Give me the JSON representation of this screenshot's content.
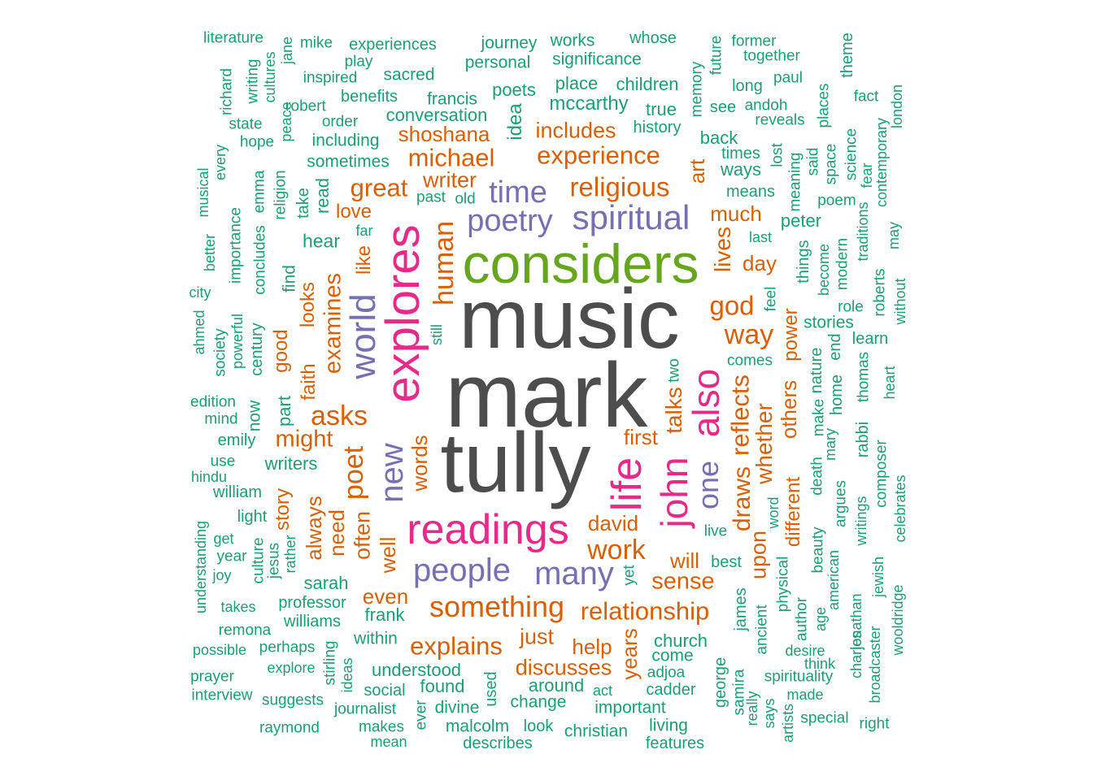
{
  "palette": {
    "c1": "#4d4d4d",
    "c2": "#e7298a",
    "c3": "#66a61e",
    "c4": "#7570b3",
    "c5": "#d95f02",
    "c6": "#1b9e77"
  },
  "words": [
    {
      "text": "music",
      "color": "c1"
    },
    {
      "text": "mark",
      "color": "c1"
    },
    {
      "text": "tully",
      "color": "c1"
    },
    {
      "text": "considers",
      "color": "c3"
    },
    {
      "text": "explores",
      "color": "c2"
    },
    {
      "text": "readings",
      "color": "c2"
    },
    {
      "text": "life",
      "color": "c2"
    },
    {
      "text": "also",
      "color": "c2"
    },
    {
      "text": "john",
      "color": "c2"
    },
    {
      "text": "spiritual",
      "color": "c4"
    },
    {
      "text": "poetry",
      "color": "c4"
    },
    {
      "text": "time",
      "color": "c4"
    },
    {
      "text": "world",
      "color": "c4"
    },
    {
      "text": "new",
      "color": "c4"
    },
    {
      "text": "people",
      "color": "c4"
    },
    {
      "text": "many",
      "color": "c4"
    },
    {
      "text": "one",
      "color": "c4"
    },
    {
      "text": "something",
      "color": "c5"
    },
    {
      "text": "relationship",
      "color": "c5"
    },
    {
      "text": "experience",
      "color": "c5"
    },
    {
      "text": "religious",
      "color": "c5"
    },
    {
      "text": "michael",
      "color": "c5"
    },
    {
      "text": "shoshana",
      "color": "c5"
    },
    {
      "text": "includes",
      "color": "c5"
    },
    {
      "text": "writer",
      "color": "c5"
    },
    {
      "text": "great",
      "color": "c5"
    },
    {
      "text": "human",
      "color": "c5"
    },
    {
      "text": "asks",
      "color": "c5"
    },
    {
      "text": "poet",
      "color": "c5"
    },
    {
      "text": "examines",
      "color": "c5"
    },
    {
      "text": "work",
      "color": "c5"
    },
    {
      "text": "god",
      "color": "c5"
    },
    {
      "text": "way",
      "color": "c5"
    },
    {
      "text": "reflects",
      "color": "c5"
    },
    {
      "text": "whether",
      "color": "c5"
    },
    {
      "text": "talks",
      "color": "c5"
    },
    {
      "text": "explains",
      "color": "c5"
    },
    {
      "text": "discusses",
      "color": "c5"
    },
    {
      "text": "sense",
      "color": "c5"
    },
    {
      "text": "might",
      "color": "c5"
    },
    {
      "text": "draws",
      "color": "c5"
    },
    {
      "text": "others",
      "color": "c5"
    },
    {
      "text": "lives",
      "color": "c5"
    },
    {
      "text": "day",
      "color": "c5"
    },
    {
      "text": "much",
      "color": "c5"
    },
    {
      "text": "art",
      "color": "c5"
    },
    {
      "text": "help",
      "color": "c5"
    },
    {
      "text": "just",
      "color": "c5"
    },
    {
      "text": "even",
      "color": "c5"
    },
    {
      "text": "years",
      "color": "c5"
    },
    {
      "text": "first",
      "color": "c5"
    },
    {
      "text": "will",
      "color": "c5"
    },
    {
      "text": "david",
      "color": "c5"
    },
    {
      "text": "upon",
      "color": "c5"
    },
    {
      "text": "often",
      "color": "c5"
    },
    {
      "text": "always",
      "color": "c5"
    },
    {
      "text": "need",
      "color": "c5"
    },
    {
      "text": "words",
      "color": "c5"
    },
    {
      "text": "well",
      "color": "c5"
    },
    {
      "text": "good",
      "color": "c5"
    },
    {
      "text": "faith",
      "color": "c5"
    },
    {
      "text": "looks",
      "color": "c5"
    },
    {
      "text": "power",
      "color": "c5"
    },
    {
      "text": "different",
      "color": "c5"
    },
    {
      "text": "love",
      "color": "c5"
    },
    {
      "text": "like",
      "color": "c5"
    },
    {
      "text": "story",
      "color": "c5"
    },
    {
      "text": "literature",
      "color": "c6"
    },
    {
      "text": "jane",
      "color": "c6"
    },
    {
      "text": "mike",
      "color": "c6"
    },
    {
      "text": "experiences",
      "color": "c6"
    },
    {
      "text": "journey",
      "color": "c6"
    },
    {
      "text": "works",
      "color": "c6"
    },
    {
      "text": "whose",
      "color": "c6"
    },
    {
      "text": "future",
      "color": "c6"
    },
    {
      "text": "former",
      "color": "c6"
    },
    {
      "text": "theme",
      "color": "c6"
    },
    {
      "text": "play",
      "color": "c6"
    },
    {
      "text": "personal",
      "color": "c6"
    },
    {
      "text": "significance",
      "color": "c6"
    },
    {
      "text": "together",
      "color": "c6"
    },
    {
      "text": "writing",
      "color": "c6"
    },
    {
      "text": "cultures",
      "color": "c6"
    },
    {
      "text": "inspired",
      "color": "c6"
    },
    {
      "text": "sacred",
      "color": "c6"
    },
    {
      "text": "memory",
      "color": "c6"
    },
    {
      "text": "paul",
      "color": "c6"
    },
    {
      "text": "richard",
      "color": "c6"
    },
    {
      "text": "poets",
      "color": "c6"
    },
    {
      "text": "place",
      "color": "c6"
    },
    {
      "text": "children",
      "color": "c6"
    },
    {
      "text": "long",
      "color": "c6"
    },
    {
      "text": "benefits",
      "color": "c6"
    },
    {
      "text": "francis",
      "color": "c6"
    },
    {
      "text": "idea",
      "color": "c6"
    },
    {
      "text": "mccarthy",
      "color": "c6"
    },
    {
      "text": "fact",
      "color": "c6"
    },
    {
      "text": "robert",
      "color": "c6"
    },
    {
      "text": "true",
      "color": "c6"
    },
    {
      "text": "see",
      "color": "c6"
    },
    {
      "text": "andoh",
      "color": "c6"
    },
    {
      "text": "places",
      "color": "c6"
    },
    {
      "text": "london",
      "color": "c6"
    },
    {
      "text": "state",
      "color": "c6"
    },
    {
      "text": "peace",
      "color": "c6"
    },
    {
      "text": "order",
      "color": "c6"
    },
    {
      "text": "conversation",
      "color": "c6"
    },
    {
      "text": "history",
      "color": "c6"
    },
    {
      "text": "reveals",
      "color": "c6"
    },
    {
      "text": "contemporary",
      "color": "c6"
    },
    {
      "text": "hope",
      "color": "c6"
    },
    {
      "text": "including",
      "color": "c6"
    },
    {
      "text": "back",
      "color": "c6"
    },
    {
      "text": "science",
      "color": "c6"
    },
    {
      "text": "every",
      "color": "c6"
    },
    {
      "text": "sometimes",
      "color": "c6"
    },
    {
      "text": "times",
      "color": "c6"
    },
    {
      "text": "lost",
      "color": "c6"
    },
    {
      "text": "said",
      "color": "c6"
    },
    {
      "text": "space",
      "color": "c6"
    },
    {
      "text": "fear",
      "color": "c6"
    },
    {
      "text": "musical",
      "color": "c6"
    },
    {
      "text": "emma",
      "color": "c6"
    },
    {
      "text": "religion",
      "color": "c6"
    },
    {
      "text": "ways",
      "color": "c6"
    },
    {
      "text": "meaning",
      "color": "c6"
    },
    {
      "text": "take",
      "color": "c6"
    },
    {
      "text": "read",
      "color": "c6"
    },
    {
      "text": "past",
      "color": "c6"
    },
    {
      "text": "old",
      "color": "c6"
    },
    {
      "text": "means",
      "color": "c6"
    },
    {
      "text": "poem",
      "color": "c6"
    },
    {
      "text": "traditions",
      "color": "c6"
    },
    {
      "text": "better",
      "color": "c6"
    },
    {
      "text": "importance",
      "color": "c6"
    },
    {
      "text": "concludes",
      "color": "c6"
    },
    {
      "text": "far",
      "color": "c6"
    },
    {
      "text": "peter",
      "color": "c6"
    },
    {
      "text": "last",
      "color": "c6"
    },
    {
      "text": "may",
      "color": "c6"
    },
    {
      "text": "hear",
      "color": "c6"
    },
    {
      "text": "become",
      "color": "c6"
    },
    {
      "text": "modern",
      "color": "c6"
    },
    {
      "text": "find",
      "color": "c6"
    },
    {
      "text": "things",
      "color": "c6"
    },
    {
      "text": "roberts",
      "color": "c6"
    },
    {
      "text": "city",
      "color": "c6"
    },
    {
      "text": "feel",
      "color": "c6"
    },
    {
      "text": "role",
      "color": "c6"
    },
    {
      "text": "without",
      "color": "c6"
    },
    {
      "text": "ahmed",
      "color": "c6"
    },
    {
      "text": "powerful",
      "color": "c6"
    },
    {
      "text": "century",
      "color": "c6"
    },
    {
      "text": "still",
      "color": "c6"
    },
    {
      "text": "stories",
      "color": "c6"
    },
    {
      "text": "learn",
      "color": "c6"
    },
    {
      "text": "society",
      "color": "c6"
    },
    {
      "text": "comes",
      "color": "c6"
    },
    {
      "text": "nature",
      "color": "c6"
    },
    {
      "text": "end",
      "color": "c6"
    },
    {
      "text": "home",
      "color": "c6"
    },
    {
      "text": "thomas",
      "color": "c6"
    },
    {
      "text": "heart",
      "color": "c6"
    },
    {
      "text": "two",
      "color": "c6"
    },
    {
      "text": "edition",
      "color": "c6"
    },
    {
      "text": "now",
      "color": "c6"
    },
    {
      "text": "part",
      "color": "c6"
    },
    {
      "text": "mind",
      "color": "c6"
    },
    {
      "text": "rabbi",
      "color": "c6"
    },
    {
      "text": "make",
      "color": "c6"
    },
    {
      "text": "emily",
      "color": "c6"
    },
    {
      "text": "mary",
      "color": "c6"
    },
    {
      "text": "composer",
      "color": "c6"
    },
    {
      "text": "use",
      "color": "c6"
    },
    {
      "text": "writers",
      "color": "c6"
    },
    {
      "text": "hindu",
      "color": "c6"
    },
    {
      "text": "death",
      "color": "c6"
    },
    {
      "text": "celebrates",
      "color": "c6"
    },
    {
      "text": "william",
      "color": "c6"
    },
    {
      "text": "word",
      "color": "c6"
    },
    {
      "text": "argues",
      "color": "c6"
    },
    {
      "text": "writings",
      "color": "c6"
    },
    {
      "text": "light",
      "color": "c6"
    },
    {
      "text": "understanding",
      "color": "c6"
    },
    {
      "text": "get",
      "color": "c6"
    },
    {
      "text": "culture",
      "color": "c6"
    },
    {
      "text": "jesus",
      "color": "c6"
    },
    {
      "text": "rather",
      "color": "c6"
    },
    {
      "text": "live",
      "color": "c6"
    },
    {
      "text": "beauty",
      "color": "c6"
    },
    {
      "text": "american",
      "color": "c6"
    },
    {
      "text": "year",
      "color": "c6"
    },
    {
      "text": "best",
      "color": "c6"
    },
    {
      "text": "joy",
      "color": "c6"
    },
    {
      "text": "yet",
      "color": "c6"
    },
    {
      "text": "physical",
      "color": "c6"
    },
    {
      "text": "jewish",
      "color": "c6"
    },
    {
      "text": "sarah",
      "color": "c6"
    },
    {
      "text": "wooldridge",
      "color": "c6"
    },
    {
      "text": "takes",
      "color": "c6"
    },
    {
      "text": "professor",
      "color": "c6"
    },
    {
      "text": "james",
      "color": "c6"
    },
    {
      "text": "age",
      "color": "c6"
    },
    {
      "text": "author",
      "color": "c6"
    },
    {
      "text": "jonathan",
      "color": "c6"
    },
    {
      "text": "frank",
      "color": "c6"
    },
    {
      "text": "remona",
      "color": "c6"
    },
    {
      "text": "williams",
      "color": "c6"
    },
    {
      "text": "ancient",
      "color": "c6"
    },
    {
      "text": "charles",
      "color": "c6"
    },
    {
      "text": "within",
      "color": "c6"
    },
    {
      "text": "church",
      "color": "c6"
    },
    {
      "text": "possible",
      "color": "c6"
    },
    {
      "text": "perhaps",
      "color": "c6"
    },
    {
      "text": "desire",
      "color": "c6"
    },
    {
      "text": "stirling",
      "color": "c6"
    },
    {
      "text": "come",
      "color": "c6"
    },
    {
      "text": "broadcaster",
      "color": "c6"
    },
    {
      "text": "explore",
      "color": "c6"
    },
    {
      "text": "think",
      "color": "c6"
    },
    {
      "text": "understood",
      "color": "c6"
    },
    {
      "text": "adjoa",
      "color": "c6"
    },
    {
      "text": "prayer",
      "color": "c6"
    },
    {
      "text": "ideas",
      "color": "c6"
    },
    {
      "text": "spirituality",
      "color": "c6"
    },
    {
      "text": "used",
      "color": "c6"
    },
    {
      "text": "george",
      "color": "c6"
    },
    {
      "text": "samira",
      "color": "c6"
    },
    {
      "text": "around",
      "color": "c6"
    },
    {
      "text": "social",
      "color": "c6"
    },
    {
      "text": "found",
      "color": "c6"
    },
    {
      "text": "act",
      "color": "c6"
    },
    {
      "text": "cadder",
      "color": "c6"
    },
    {
      "text": "interview",
      "color": "c6"
    },
    {
      "text": "made",
      "color": "c6"
    },
    {
      "text": "suggests",
      "color": "c6"
    },
    {
      "text": "divine",
      "color": "c6"
    },
    {
      "text": "change",
      "color": "c6"
    },
    {
      "text": "important",
      "color": "c6"
    },
    {
      "text": "really",
      "color": "c6"
    },
    {
      "text": "says",
      "color": "c6"
    },
    {
      "text": "journalist",
      "color": "c6"
    },
    {
      "text": "artists",
      "color": "c6"
    },
    {
      "text": "special",
      "color": "c6"
    },
    {
      "text": "raymond",
      "color": "c6"
    },
    {
      "text": "makes",
      "color": "c6"
    },
    {
      "text": "ever",
      "color": "c6"
    },
    {
      "text": "malcolm",
      "color": "c6"
    },
    {
      "text": "look",
      "color": "c6"
    },
    {
      "text": "living",
      "color": "c6"
    },
    {
      "text": "right",
      "color": "c6"
    },
    {
      "text": "christian",
      "color": "c6"
    },
    {
      "text": "mean",
      "color": "c6"
    },
    {
      "text": "describes",
      "color": "c6"
    },
    {
      "text": "features",
      "color": "c6"
    }
  ]
}
